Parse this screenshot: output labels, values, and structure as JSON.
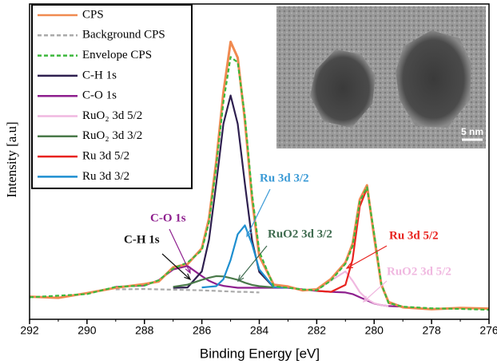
{
  "chart_data": {
    "type": "line",
    "xlabel": "Binding Energy [eV]",
    "ylabel": "Intensity [a.u]",
    "x": [
      292,
      291,
      290,
      289,
      288,
      287.5,
      287,
      286.5,
      286,
      285.75,
      285.5,
      285.25,
      285,
      284.75,
      284.5,
      284.25,
      284,
      283.5,
      283,
      282.5,
      282,
      281.5,
      281,
      280.75,
      280.5,
      280.25,
      280,
      279.75,
      279.5,
      279,
      278,
      277,
      276
    ],
    "xlim": [
      292,
      276
    ],
    "xticks": [
      292,
      290,
      288,
      286,
      284,
      282,
      280,
      278,
      276
    ],
    "ylim": [
      0,
      100
    ],
    "series": [
      {
        "name": "CPS",
        "color": "#f08a50",
        "style": "solid",
        "values": [
          7.2,
          6.8,
          8.3,
          10,
          11.2,
          12,
          16.5,
          17.5,
          22.5,
          32,
          50,
          72,
          88,
          83,
          63,
          38,
          20,
          11,
          10.4,
          9.2,
          9.5,
          12.8,
          18,
          24,
          38,
          42.5,
          26,
          11,
          5.5,
          3.8,
          3.2,
          3.6,
          3.4
        ]
      },
      {
        "name": "Background CPS",
        "color": "#aaaaaa",
        "style": "dashed",
        "values": [
          null,
          null,
          null,
          9.5,
          9.6,
          9.5,
          9.4,
          9.3,
          9.2,
          9.1,
          9,
          8.9,
          8.8,
          8.7,
          8.7,
          8.6,
          8.5,
          null,
          null,
          null,
          null,
          null,
          null,
          null,
          null,
          null,
          null,
          null,
          null,
          null,
          null,
          null,
          null
        ]
      },
      {
        "name": "Envelope CPS",
        "color": "#3cb83c",
        "style": "dashed",
        "values": [
          7,
          7.5,
          8,
          10.3,
          10.7,
          12.4,
          16.1,
          18,
          21.9,
          30.8,
          48.4,
          68.9,
          83.2,
          81.5,
          64.4,
          39.7,
          21.5,
          10.5,
          10,
          9.5,
          9.2,
          12.3,
          17.6,
          23.2,
          37.4,
          41.9,
          27.1,
          11.3,
          5.2,
          4,
          3.5,
          3.3,
          3
        ]
      },
      {
        "name": "C-H 1s",
        "color": "#2e1f4f",
        "style": "solid",
        "values": [
          null,
          null,
          null,
          null,
          null,
          null,
          10,
          10.1,
          15.2,
          25.3,
          43,
          62,
          71,
          62,
          43,
          25,
          15,
          10.2,
          null,
          null,
          null,
          null,
          null,
          null,
          null,
          null,
          null,
          null,
          null,
          null,
          null,
          null,
          null
        ]
      },
      {
        "name": "C-O 1s",
        "color": "#8e1f8e",
        "style": "solid",
        "values": [
          null,
          null,
          null,
          10.3,
          10.7,
          12.4,
          15.8,
          16.9,
          13.7,
          12.2,
          11.2,
          10.6,
          10.3,
          10,
          10,
          10,
          10,
          10,
          10,
          9.5,
          9,
          8.7,
          8.5,
          8,
          7,
          6,
          5,
          4.5,
          4.2,
          4,
          null,
          null,
          null
        ]
      },
      {
        "name": "RuO₂ 3d 5/2",
        "color": "#f0b8e0",
        "style": "solid",
        "values": [
          null,
          null,
          null,
          null,
          null,
          null,
          null,
          null,
          null,
          null,
          null,
          null,
          null,
          null,
          null,
          null,
          null,
          null,
          null,
          null,
          9.2,
          12.3,
          15.2,
          12.2,
          8.6,
          6.4,
          5.1,
          4.5,
          4.2,
          null,
          null,
          null,
          null
        ]
      },
      {
        "name": "RuO₂ 3d 3/2",
        "color": "#4a7a4a",
        "style": "solid",
        "values": [
          null,
          null,
          null,
          null,
          null,
          null,
          10.3,
          11,
          12.5,
          13.2,
          13.7,
          13.6,
          13.1,
          12.5,
          11.6,
          10.9,
          10.5,
          10.1,
          null,
          null,
          null,
          null,
          null,
          null,
          null,
          null,
          null,
          null,
          null,
          null,
          null,
          null,
          null
        ]
      },
      {
        "name": "Ru 3d 5/2",
        "color": "#e8231f",
        "style": "solid",
        "values": [
          null,
          null,
          null,
          null,
          null,
          null,
          null,
          null,
          null,
          null,
          null,
          null,
          null,
          null,
          null,
          null,
          null,
          null,
          null,
          null,
          9,
          8.7,
          10.9,
          19,
          35.8,
          41.5,
          27,
          11.3,
          5.2,
          4,
          null,
          null,
          null
        ]
      },
      {
        "name": "Ru 3d 3/2",
        "color": "#1e8fd0",
        "style": "solid",
        "values": [
          null,
          null,
          null,
          null,
          null,
          null,
          null,
          null,
          10.1,
          10.3,
          10.5,
          12.7,
          18.8,
          27,
          29.8,
          23.8,
          15.8,
          10.2,
          10,
          null,
          null,
          null,
          null,
          null,
          null,
          null,
          null,
          null,
          null,
          null,
          null,
          null,
          null
        ]
      }
    ],
    "annotations": [
      {
        "text": "C-H 1s",
        "color": "#111111"
      },
      {
        "text": "C-O 1s",
        "color": "#8e1f8e"
      },
      {
        "text": "Ru 3d 3/2",
        "color": "#3a9ad6"
      },
      {
        "text": "RuO2 3d 3/2",
        "color": "#3f6b4f"
      },
      {
        "text": "Ru 3d 5/2",
        "color": "#e8231f"
      },
      {
        "text": "RuO2 3d 5/2",
        "color": "#f0b8e0"
      }
    ],
    "inset_scale_label": "5 nm"
  }
}
